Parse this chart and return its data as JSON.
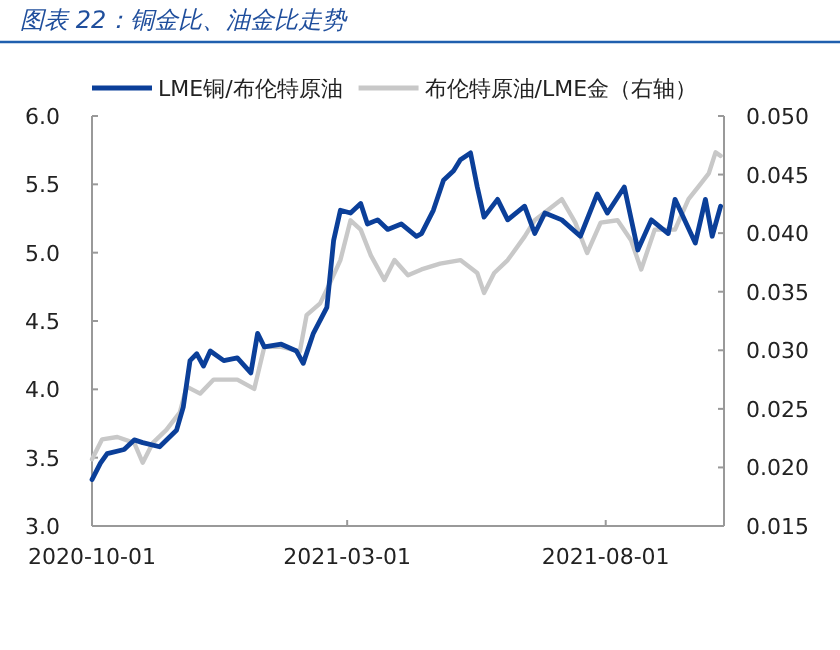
{
  "chart_data": {
    "type": "line",
    "title": "图表 22：铜金比、油金比走势",
    "legend": "top",
    "grid": false,
    "xlim": [
      "2020-10-01",
      "2021-10-10"
    ],
    "xticks": [
      "2020-10-01",
      "2021-03-01",
      "2021-08-01"
    ],
    "ylim": [
      3.0,
      6.0
    ],
    "yticks": [
      {
        "value": 3.0,
        "label": "3.0"
      },
      {
        "value": 3.5,
        "label": "3.5"
      },
      {
        "value": 4.0,
        "label": "4.0"
      },
      {
        "value": 4.5,
        "label": "4.5"
      },
      {
        "value": 5.0,
        "label": "5.0"
      },
      {
        "value": 5.5,
        "label": "5.5"
      },
      {
        "value": 6.0,
        "label": "6.0"
      }
    ],
    "y2lim": [
      0.015,
      0.05
    ],
    "y2ticks": [
      {
        "value": 0.015,
        "label": "0.015"
      },
      {
        "value": 0.02,
        "label": "0.020"
      },
      {
        "value": 0.025,
        "label": "0.025"
      },
      {
        "value": 0.03,
        "label": "0.030"
      },
      {
        "value": 0.035,
        "label": "0.035"
      },
      {
        "value": 0.04,
        "label": "0.040"
      },
      {
        "value": 0.045,
        "label": "0.045"
      },
      {
        "value": 0.05,
        "label": "0.050"
      }
    ],
    "series": [
      {
        "name": "LME铜/布伦特原油",
        "color": "#0b3f99",
        "x": [
          "2020-10-01",
          "2020-10-06",
          "2020-10-10",
          "2020-10-20",
          "2020-10-26",
          "2020-10-31",
          "2020-11-10",
          "2020-11-20",
          "2020-11-24",
          "2020-11-28",
          "2020-12-02",
          "2020-12-06",
          "2020-12-10",
          "2020-12-18",
          "2020-12-26",
          "2021-01-03",
          "2021-01-07",
          "2021-01-11",
          "2021-01-21",
          "2021-01-30",
          "2021-02-03",
          "2021-02-09",
          "2021-02-17",
          "2021-02-21",
          "2021-02-25",
          "2021-03-03",
          "2021-03-09",
          "2021-03-13",
          "2021-03-19",
          "2021-03-25",
          "2021-04-02",
          "2021-04-11",
          "2021-04-14",
          "2021-04-21",
          "2021-04-27",
          "2021-05-03",
          "2021-05-07",
          "2021-05-13",
          "2021-05-17",
          "2021-05-21",
          "2021-05-29",
          "2021-06-04",
          "2021-06-14",
          "2021-06-20",
          "2021-06-26",
          "2021-07-06",
          "2021-07-17",
          "2021-07-27",
          "2021-08-02",
          "2021-08-12",
          "2021-08-20",
          "2021-08-28",
          "2021-09-07",
          "2021-09-11",
          "2021-09-23",
          "2021-09-29",
          "2021-10-03",
          "2021-10-08"
        ],
        "values": [
          3.34,
          3.46,
          3.53,
          3.56,
          3.63,
          3.61,
          3.58,
          3.7,
          3.87,
          4.21,
          4.26,
          4.17,
          4.28,
          4.21,
          4.23,
          4.12,
          4.41,
          4.31,
          4.33,
          4.28,
          4.19,
          4.41,
          4.6,
          5.09,
          5.31,
          5.29,
          5.36,
          5.21,
          5.24,
          5.17,
          5.21,
          5.12,
          5.14,
          5.31,
          5.53,
          5.6,
          5.68,
          5.73,
          5.48,
          5.26,
          5.39,
          5.24,
          5.34,
          5.14,
          5.29,
          5.24,
          5.12,
          5.43,
          5.29,
          5.48,
          5.02,
          5.24,
          5.14,
          5.39,
          5.07,
          5.39,
          5.12,
          5.34
        ]
      },
      {
        "name": "布伦特原油/LME金（右轴）",
        "color": "#c8c8c8",
        "axis": "y2",
        "x": [
          "2020-10-01",
          "2020-10-07",
          "2020-10-16",
          "2020-10-26",
          "2020-10-31",
          "2020-11-06",
          "2020-11-14",
          "2020-11-22",
          "2020-11-26",
          "2020-12-04",
          "2020-12-12",
          "2020-12-26",
          "2021-01-05",
          "2021-01-11",
          "2021-01-21",
          "2021-02-01",
          "2021-02-05",
          "2021-02-13",
          "2021-02-19",
          "2021-02-25",
          "2021-03-03",
          "2021-03-09",
          "2021-03-15",
          "2021-03-23",
          "2021-03-29",
          "2021-04-06",
          "2021-04-14",
          "2021-04-25",
          "2021-05-07",
          "2021-05-17",
          "2021-05-21",
          "2021-05-27",
          "2021-06-04",
          "2021-06-14",
          "2021-06-20",
          "2021-06-28",
          "2021-07-06",
          "2021-07-14",
          "2021-07-21",
          "2021-07-29",
          "2021-08-08",
          "2021-08-16",
          "2021-08-22",
          "2021-08-30",
          "2021-09-11",
          "2021-09-19",
          "2021-09-25",
          "2021-10-01",
          "2021-10-05",
          "2021-10-08"
        ],
        "values": [
          0.0207,
          0.0224,
          0.0226,
          0.0221,
          0.0204,
          0.0221,
          0.0232,
          0.0247,
          0.0269,
          0.0263,
          0.0275,
          0.0275,
          0.0267,
          0.0303,
          0.0303,
          0.0299,
          0.033,
          0.034,
          0.0358,
          0.0377,
          0.0411,
          0.0403,
          0.0381,
          0.036,
          0.0377,
          0.0364,
          0.0369,
          0.0374,
          0.0377,
          0.0366,
          0.0349,
          0.0366,
          0.0377,
          0.0397,
          0.0411,
          0.042,
          0.0429,
          0.0409,
          0.0383,
          0.0409,
          0.0411,
          0.0394,
          0.0369,
          0.0403,
          0.0403,
          0.0429,
          0.044,
          0.0451,
          0.0469,
          0.0466
        ]
      }
    ]
  }
}
